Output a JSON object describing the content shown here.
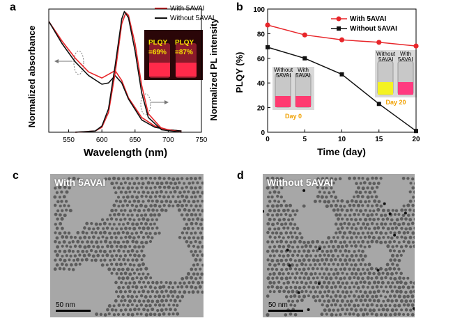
{
  "panels": {
    "a": {
      "letter": "a",
      "x_label": "Wavelength (nm)",
      "y_left_label": "Normalized absorbance",
      "y_right_label": "Normalized PL intensity",
      "legend": [
        "With 5AVAI",
        "Without 5AVAI"
      ],
      "inset": {
        "left_text": "PLQY =69%",
        "right_text": "PLQY =87%"
      }
    },
    "b": {
      "letter": "b",
      "inset_day0": {
        "left": "Without 5AVAI",
        "right": "With 5AVAI",
        "caption": "Day 0"
      },
      "inset_day20": {
        "left": "Without 5AVAI",
        "right": "With 5AVAI",
        "caption": "Day 20"
      }
    },
    "c": {
      "letter": "c",
      "label": "With 5AVAI",
      "scale": "50 nm"
    },
    "d": {
      "letter": "d",
      "label": "Without 5AVAI",
      "scale": "50 nm"
    }
  },
  "colors": {
    "red": "#e8262a",
    "black": "#111111",
    "orange": "#f0a000"
  },
  "chart_data": [
    {
      "type": "line",
      "xlabel": "Wavelength (nm)",
      "ylabel": "Normalized absorbance / Normalized PL intensity",
      "xlim": [
        520,
        750
      ],
      "xticks": [
        550,
        600,
        650,
        700,
        750
      ],
      "series": [
        {
          "name": "With 5AVAI",
          "kind": "absorbance",
          "x": [
            520,
            540,
            560,
            580,
            600,
            610,
            620,
            630,
            640,
            660,
            680,
            700,
            720
          ],
          "y": [
            0.9,
            0.74,
            0.6,
            0.49,
            0.44,
            0.47,
            0.5,
            0.42,
            0.28,
            0.12,
            0.05,
            0.02,
            0.01
          ]
        },
        {
          "name": "Without 5AVAI",
          "kind": "absorbance",
          "x": [
            520,
            540,
            560,
            580,
            600,
            610,
            620,
            630,
            640,
            660,
            680,
            700,
            720
          ],
          "y": [
            0.9,
            0.72,
            0.57,
            0.46,
            0.39,
            0.4,
            0.46,
            0.4,
            0.27,
            0.1,
            0.04,
            0.02,
            0.01
          ]
        },
        {
          "name": "With 5AVAI",
          "kind": "PL",
          "x": [
            560,
            590,
            600,
            610,
            620,
            630,
            636,
            640,
            650,
            660,
            670,
            690,
            720
          ],
          "y": [
            0.0,
            0.01,
            0.04,
            0.16,
            0.48,
            0.88,
            0.97,
            0.95,
            0.72,
            0.38,
            0.15,
            0.03,
            0.0
          ]
        },
        {
          "name": "Without 5AVAI",
          "kind": "PL",
          "x": [
            560,
            590,
            600,
            610,
            620,
            630,
            634,
            640,
            650,
            660,
            670,
            690,
            720
          ],
          "y": [
            0.0,
            0.01,
            0.05,
            0.19,
            0.54,
            0.92,
            0.98,
            0.93,
            0.66,
            0.32,
            0.12,
            0.02,
            0.0
          ]
        }
      ]
    },
    {
      "type": "line",
      "xlabel": "Time (day)",
      "ylabel": "PLQY (%)",
      "xlim": [
        0,
        20
      ],
      "ylim": [
        0,
        100
      ],
      "xticks": [
        0,
        5,
        10,
        15,
        20
      ],
      "yticks": [
        0,
        20,
        40,
        60,
        80,
        100
      ],
      "series": [
        {
          "name": "With 5AVAI",
          "x": [
            0,
            5,
            10,
            15,
            20
          ],
          "y": [
            87,
            79,
            75,
            73,
            70
          ]
        },
        {
          "name": "Without 5AVAI",
          "x": [
            0,
            5,
            10,
            15,
            20
          ],
          "y": [
            69,
            60,
            47,
            23,
            1
          ]
        }
      ]
    }
  ]
}
